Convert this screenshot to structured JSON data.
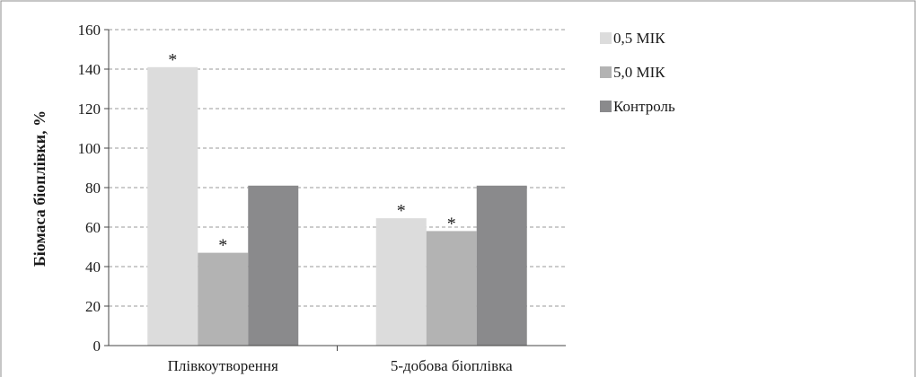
{
  "chart_data": {
    "type": "bar",
    "title": "",
    "xlabel": "",
    "ylabel": "Біомаса біоплівки, %",
    "ylim": [
      0,
      160
    ],
    "yticks": [
      0,
      20,
      40,
      60,
      80,
      100,
      120,
      140,
      160
    ],
    "grid": true,
    "legend_position": "right",
    "categories": [
      "Плівкоутворення",
      "5-добова біоплівка"
    ],
    "series": [
      {
        "name": "0,5 МІК",
        "color": "#dcdcdc",
        "values": [
          141,
          64.5
        ],
        "annotations": [
          "*",
          "*"
        ]
      },
      {
        "name": "5,0 МІК",
        "color": "#b3b3b3",
        "values": [
          47,
          58
        ],
        "annotations": [
          "*",
          "*"
        ]
      },
      {
        "name": "Контроль",
        "color": "#8a8a8c",
        "values": [
          81,
          81
        ],
        "annotations": [
          "",
          ""
        ]
      }
    ]
  }
}
